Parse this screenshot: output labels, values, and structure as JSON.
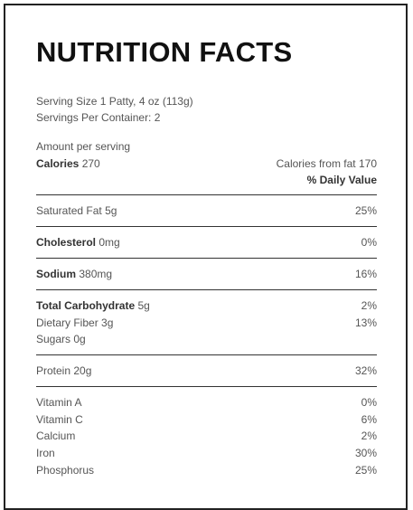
{
  "header": {
    "title": "NUTRITION FACTS"
  },
  "serving": {
    "size": "Serving Size 1 Patty, 4 oz (113g)",
    "per_container": "Servings Per Container: 2"
  },
  "amount_per_serving": "Amount per serving",
  "calories": {
    "label": "Calories",
    "value": "270",
    "from_fat": "Calories from fat 170"
  },
  "daily_value_header": "% Daily Value",
  "groups": [
    [
      {
        "name": "Saturated Fat",
        "amount": "5g",
        "dv": "25%",
        "bold": false
      }
    ],
    [
      {
        "name": "Cholesterol",
        "amount": "0mg",
        "dv": "0%",
        "bold": true
      }
    ],
    [
      {
        "name": "Sodium",
        "amount": "380mg",
        "dv": "16%",
        "bold": true
      }
    ],
    [
      {
        "name": "Total Carbohydrate",
        "amount": "5g",
        "dv": "2%",
        "bold": true
      },
      {
        "name": "Dietary Fiber",
        "amount": "3g",
        "dv": "13%",
        "bold": false
      },
      {
        "name": "Sugars",
        "amount": "0g",
        "bold": false
      }
    ],
    [
      {
        "name": "Protein",
        "amount": "20g",
        "dv": "32%",
        "bold": false
      }
    ],
    [
      {
        "name": "Vitamin A",
        "dv": "0%",
        "bold": false
      },
      {
        "name": "Vitamin C",
        "dv": "6%",
        "bold": false
      },
      {
        "name": "Calcium",
        "dv": "2%",
        "bold": false
      },
      {
        "name": "Iron",
        "dv": "30%",
        "bold": false
      },
      {
        "name": "Phosphorus",
        "dv": "25%",
        "bold": false
      }
    ]
  ]
}
